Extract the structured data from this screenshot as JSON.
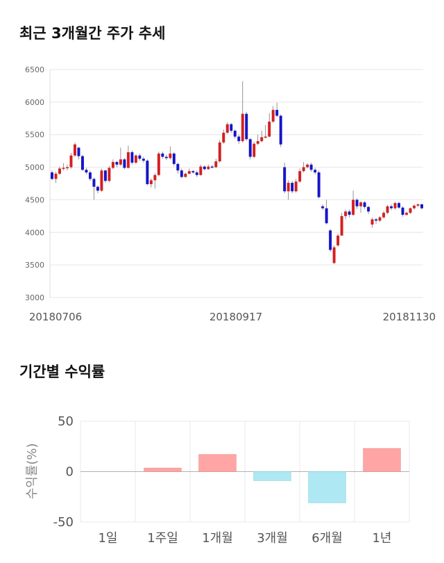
{
  "titles": {
    "price_trend": "최근 3개월간 주가 추세",
    "period_returns": "기간별 수익률"
  },
  "colors": {
    "up": "#d42020",
    "down": "#1515c8",
    "bar_positive": "#ffa5a5",
    "bar_negative": "#aee8f2"
  },
  "chart_data": [
    {
      "type": "candlestick",
      "title": "최근 3개월간 주가 추세",
      "ylim": [
        3000,
        6500
      ],
      "y_ticks": [
        "3000",
        "3500",
        "4000",
        "4500",
        "5000",
        "5500",
        "6000",
        "6500"
      ],
      "x_tick_labels": [
        "20180706",
        "20180917",
        "20181130"
      ],
      "grid": true,
      "candles": [
        [
          4920,
          4820,
          4950,
          4800
        ],
        [
          4820,
          4900,
          4930,
          4760
        ],
        [
          4900,
          4980,
          5010,
          4880
        ],
        [
          4980,
          4990,
          5060,
          4950
        ],
        [
          4990,
          5000,
          5040,
          4950
        ],
        [
          5000,
          5180,
          5220,
          4980
        ],
        [
          5180,
          5350,
          5380,
          5160
        ],
        [
          5300,
          5170,
          5310,
          5120
        ],
        [
          5170,
          4960,
          5190,
          4940
        ],
        [
          4960,
          4920,
          4990,
          4890
        ],
        [
          4920,
          4820,
          4950,
          4790
        ],
        [
          4820,
          4700,
          4840,
          4500
        ],
        [
          4700,
          4640,
          4720,
          4600
        ],
        [
          4640,
          4950,
          4980,
          4620
        ],
        [
          4950,
          4790,
          4960,
          4760
        ],
        [
          4790,
          4990,
          5020,
          4770
        ],
        [
          4990,
          5080,
          5120,
          4970
        ],
        [
          5080,
          5040,
          5100,
          5000
        ],
        [
          5040,
          5120,
          5300,
          5020
        ],
        [
          5120,
          4990,
          5140,
          4970
        ],
        [
          4990,
          5230,
          5330,
          4980
        ],
        [
          5230,
          5070,
          5260,
          5040
        ],
        [
          5070,
          5180,
          5200,
          5050
        ],
        [
          5180,
          5130,
          5210,
          5100
        ],
        [
          5130,
          5100,
          5160,
          5070
        ],
        [
          5100,
          4740,
          5120,
          4720
        ],
        [
          4740,
          4800,
          4830,
          4690
        ],
        [
          4800,
          4880,
          4910,
          4670
        ],
        [
          4880,
          5210,
          5240,
          4860
        ],
        [
          5210,
          5160,
          5240,
          5130
        ],
        [
          5160,
          5140,
          5190,
          5110
        ],
        [
          5140,
          5210,
          5320,
          5120
        ],
        [
          5210,
          5050,
          5230,
          5020
        ],
        [
          5050,
          4950,
          5070,
          4900
        ],
        [
          4950,
          4850,
          4980,
          4830
        ],
        [
          4850,
          4900,
          4920,
          4840
        ],
        [
          4900,
          4940,
          4980,
          4890
        ],
        [
          4940,
          4920,
          4960,
          4900
        ],
        [
          4920,
          4880,
          4950,
          4850
        ],
        [
          4880,
          5010,
          5040,
          4870
        ],
        [
          5010,
          4970,
          5030,
          4950
        ],
        [
          4970,
          5010,
          5040,
          4960
        ],
        [
          5010,
          5000,
          5030,
          4980
        ],
        [
          5000,
          5090,
          5130,
          4990
        ],
        [
          5090,
          5380,
          5420,
          5070
        ],
        [
          5380,
          5530,
          5580,
          5360
        ],
        [
          5530,
          5660,
          5690,
          5510
        ],
        [
          5660,
          5560,
          5680,
          5530
        ],
        [
          5560,
          5470,
          5580,
          5440
        ],
        [
          5470,
          5400,
          5500,
          5360
        ],
        [
          5400,
          5820,
          6320,
          5380
        ],
        [
          5820,
          5430,
          5850,
          5410
        ],
        [
          5430,
          5160,
          5450,
          5120
        ],
        [
          5160,
          5360,
          5390,
          5140
        ],
        [
          5360,
          5400,
          5500,
          5340
        ],
        [
          5400,
          5460,
          5560,
          5380
        ],
        [
          5460,
          5470,
          5650,
          5440
        ],
        [
          5470,
          5700,
          5830,
          5460
        ],
        [
          5700,
          5880,
          5940,
          5680
        ],
        [
          5880,
          5790,
          5990,
          5770
        ],
        [
          5790,
          5350,
          5810,
          5310
        ],
        [
          5000,
          4630,
          5070,
          4600
        ],
        [
          4630,
          4760,
          4800,
          4500
        ],
        [
          4760,
          4630,
          4790,
          4600
        ],
        [
          4630,
          4780,
          4820,
          4610
        ],
        [
          4780,
          4940,
          4980,
          4760
        ],
        [
          4940,
          5000,
          5080,
          4920
        ],
        [
          5000,
          5040,
          5060,
          4980
        ],
        [
          5040,
          4960,
          5070,
          4930
        ],
        [
          4960,
          4920,
          4990,
          4890
        ],
        [
          4920,
          4540,
          4950,
          4520
        ],
        [
          4400,
          4370,
          4430,
          4340
        ],
        [
          4370,
          4140,
          4500,
          4120
        ],
        [
          4030,
          3730,
          4050,
          3700
        ],
        [
          3530,
          3770,
          3800,
          3510
        ],
        [
          3800,
          3950,
          3980,
          3780
        ],
        [
          3950,
          4250,
          4300,
          4080
        ],
        [
          4250,
          4320,
          4350,
          4200
        ],
        [
          4320,
          4270,
          4350,
          4230
        ],
        [
          4270,
          4500,
          4640,
          4250
        ],
        [
          4500,
          4400,
          4520,
          4360
        ],
        [
          4400,
          4460,
          4480,
          4300
        ],
        [
          4460,
          4390,
          4480,
          4360
        ],
        [
          4390,
          4320,
          4410,
          4280
        ],
        [
          4120,
          4200,
          4230,
          4070
        ],
        [
          4200,
          4180,
          4220,
          4130
        ],
        [
          4180,
          4230,
          4250,
          4160
        ],
        [
          4230,
          4300,
          4330,
          4210
        ],
        [
          4300,
          4400,
          4420,
          4280
        ],
        [
          4400,
          4370,
          4430,
          4340
        ],
        [
          4370,
          4450,
          4470,
          4350
        ],
        [
          4450,
          4380,
          4470,
          4360
        ],
        [
          4380,
          4270,
          4400,
          4240
        ],
        [
          4270,
          4300,
          4320,
          4250
        ],
        [
          4300,
          4370,
          4380,
          4280
        ],
        [
          4370,
          4410,
          4430,
          4350
        ],
        [
          4410,
          4430,
          4440,
          4390
        ],
        [
          4430,
          4370,
          4440,
          4350
        ]
      ]
    },
    {
      "type": "bar",
      "title": "기간별 수익률",
      "ylabel": "수익률(%)",
      "ylim": [
        -50,
        50
      ],
      "y_ticks": [
        "50",
        "0",
        "-50"
      ],
      "categories": [
        "1일",
        "1주일",
        "1개월",
        "3개월",
        "6개월",
        "1년"
      ],
      "values": [
        0,
        3.5,
        17,
        -9,
        -31,
        23
      ],
      "grid": true
    }
  ]
}
